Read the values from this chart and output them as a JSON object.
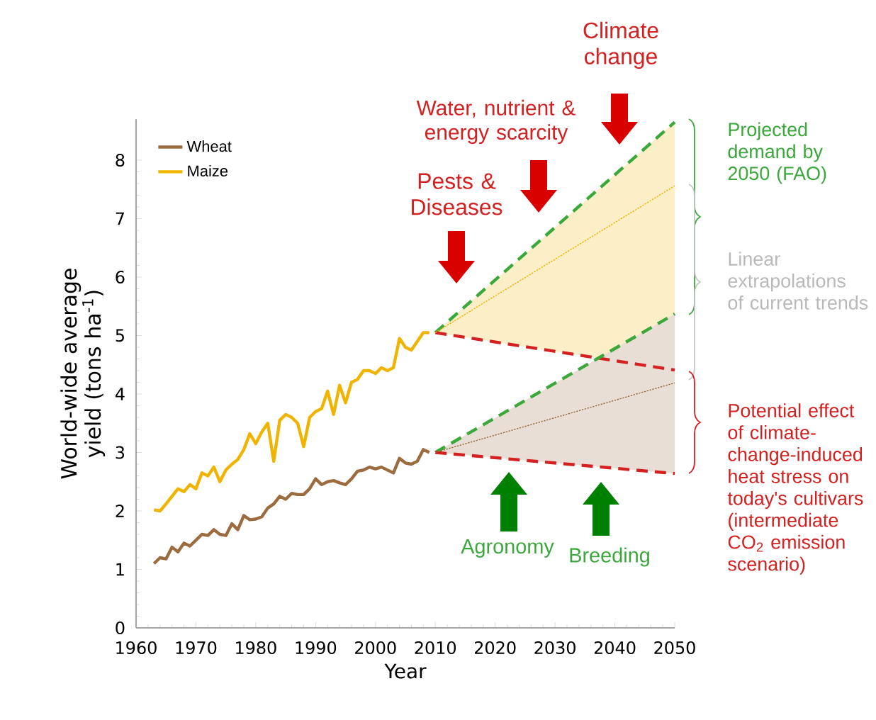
{
  "chart_data": {
    "type": "line",
    "xlabel": "Year",
    "ylabel": "World-wide average yield (tons ha$^{-1}$)",
    "xlim": [
      1960,
      2050
    ],
    "xticks": [
      1960,
      1970,
      1980,
      1990,
      2000,
      2010,
      2020,
      2030,
      2040,
      2050
    ],
    "ylim": [
      0,
      8.7
    ],
    "yticks": [
      0,
      1,
      2,
      3,
      4,
      5,
      6,
      7,
      8
    ],
    "legend": "top left",
    "series": [
      {
        "name": "Wheat",
        "color": "#9c6b3e",
        "line_style": "solid",
        "x": [
          1963,
          1964,
          1965,
          1966,
          1967,
          1968,
          1969,
          1970,
          1971,
          1972,
          1973,
          1974,
          1975,
          1976,
          1977,
          1978,
          1979,
          1980,
          1981,
          1982,
          1983,
          1984,
          1985,
          1986,
          1987,
          1988,
          1989,
          1990,
          1991,
          1992,
          1993,
          1994,
          1995,
          1996,
          1997,
          1998,
          1999,
          2000,
          2001,
          2002,
          2003,
          2004,
          2005,
          2006,
          2007,
          2008,
          2009
        ],
        "values": [
          1.1,
          1.2,
          1.18,
          1.38,
          1.3,
          1.45,
          1.4,
          1.5,
          1.6,
          1.58,
          1.68,
          1.6,
          1.58,
          1.78,
          1.68,
          1.92,
          1.85,
          1.86,
          1.9,
          2.05,
          2.12,
          2.25,
          2.2,
          2.3,
          2.28,
          2.28,
          2.38,
          2.55,
          2.45,
          2.5,
          2.52,
          2.48,
          2.45,
          2.55,
          2.68,
          2.7,
          2.75,
          2.72,
          2.75,
          2.7,
          2.65,
          2.9,
          2.82,
          2.8,
          2.85,
          3.05,
          3.0
        ]
      },
      {
        "name": "Maize",
        "color": "#f0b400",
        "line_style": "solid",
        "x": [
          1963,
          1964,
          1965,
          1966,
          1967,
          1968,
          1969,
          1970,
          1971,
          1972,
          1973,
          1974,
          1975,
          1976,
          1977,
          1978,
          1979,
          1980,
          1981,
          1982,
          1983,
          1984,
          1985,
          1986,
          1987,
          1988,
          1989,
          1990,
          1991,
          1992,
          1993,
          1994,
          1995,
          1996,
          1997,
          1998,
          1999,
          2000,
          2001,
          2002,
          2003,
          2004,
          2005,
          2006,
          2007,
          2008,
          2009
        ],
        "values": [
          2.02,
          2.0,
          2.12,
          2.25,
          2.38,
          2.33,
          2.45,
          2.38,
          2.65,
          2.6,
          2.75,
          2.5,
          2.7,
          2.8,
          2.88,
          3.05,
          3.32,
          3.15,
          3.35,
          3.5,
          2.85,
          3.55,
          3.65,
          3.6,
          3.5,
          3.1,
          3.6,
          3.7,
          3.75,
          4.05,
          3.65,
          4.15,
          3.85,
          4.2,
          4.25,
          4.4,
          4.4,
          4.35,
          4.45,
          4.4,
          4.45,
          4.95,
          4.8,
          4.75,
          4.9,
          5.05,
          5.05
        ]
      },
      {
        "color": "#f0b400",
        "line_style": "dotted",
        "x": [
          2010,
          2050
        ],
        "values": [
          5.05,
          7.56
        ],
        "lower": [
          5.05,
          4.41
        ],
        "upper": [
          5.05,
          8.65
        ]
      },
      {
        "color": "#9c6b3e",
        "line_style": "dotted",
        "x": [
          2010,
          2050
        ],
        "values": [
          3.0,
          4.19
        ],
        "lower": [
          3.0,
          2.64
        ],
        "upper": [
          3.0,
          5.37
        ]
      },
      {
        "color": "#3aa83a",
        "line_style": "dashed",
        "x": [
          2010,
          2050
        ],
        "values": [
          5.05,
          8.65
        ]
      },
      {
        "color": "#d42020",
        "line_style": "dashed",
        "x": [
          2010,
          2050
        ],
        "values": [
          5.05,
          4.41
        ]
      },
      {
        "color": "#3aa83a",
        "line_style": "dashed",
        "x": [
          2010,
          2050
        ],
        "values": [
          3.0,
          5.37
        ]
      },
      {
        "color": "#d42020",
        "line_style": "dashed",
        "x": [
          2010,
          2050
        ],
        "values": [
          3.0,
          2.64
        ]
      }
    ],
    "annotations": [
      "Climate change",
      "Water, nutrient & energy scarcity",
      "Pests & Diseases",
      "Projected demand by 2050 (FAO)",
      "Linear extrapolations of current trends",
      "Potential effect of climate-change-induced heat stress on today's cultivars (intermediate CO$_{2}$ emission scenario)",
      "Agronomy",
      "Breeding"
    ]
  }
}
